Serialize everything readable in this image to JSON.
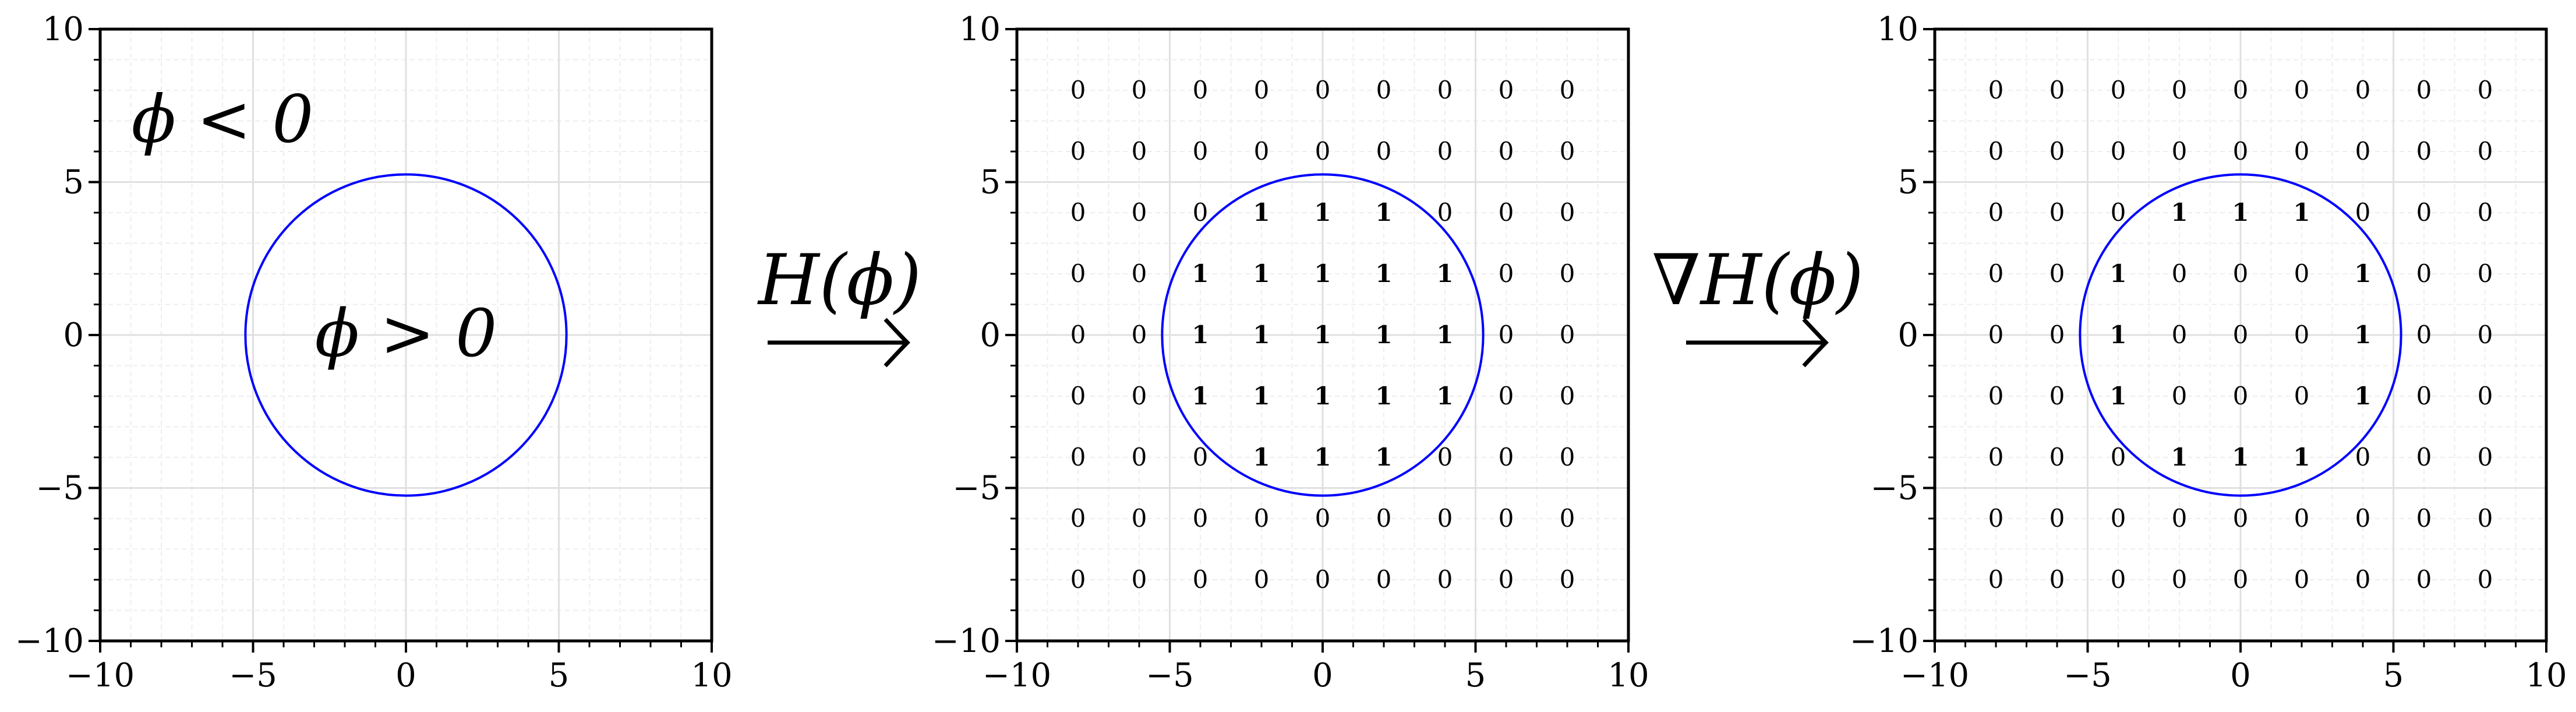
{
  "colors": {
    "circle": "#0000ff",
    "frame": "#000000",
    "grid_major": "#e0e0e0",
    "grid_minor": "#eeeeee",
    "text": "#000000"
  },
  "axis": {
    "xlim": [
      -10,
      10
    ],
    "ylim": [
      -10,
      10
    ],
    "x_tick_labels": [
      "−10",
      "−5",
      "0",
      "5",
      "10"
    ],
    "y_tick_labels": [
      "10",
      "5",
      "0",
      "−5",
      "−10"
    ],
    "grid": true,
    "minor_grid": true
  },
  "circle_radius": 5.25,
  "panels": [
    {
      "id": "phi",
      "text_labels": [
        {
          "text": "ϕ < 0",
          "x": -6,
          "y": 7
        },
        {
          "text": "ϕ > 0",
          "x": 0,
          "y": 0
        }
      ]
    },
    {
      "id": "heaviside",
      "grid_x": [
        -8,
        -6,
        -4,
        -2,
        0,
        2,
        4,
        6,
        8
      ],
      "grid_y": [
        8,
        6,
        4,
        2,
        0,
        -2,
        -4,
        -6,
        -8
      ],
      "values": [
        [
          0,
          0,
          0,
          0,
          0,
          0,
          0,
          0,
          0
        ],
        [
          0,
          0,
          0,
          0,
          0,
          0,
          0,
          0,
          0
        ],
        [
          0,
          0,
          0,
          1,
          1,
          1,
          0,
          0,
          0
        ],
        [
          0,
          0,
          1,
          1,
          1,
          1,
          1,
          0,
          0
        ],
        [
          0,
          0,
          1,
          1,
          1,
          1,
          1,
          0,
          0
        ],
        [
          0,
          0,
          1,
          1,
          1,
          1,
          1,
          0,
          0
        ],
        [
          0,
          0,
          0,
          1,
          1,
          1,
          0,
          0,
          0
        ],
        [
          0,
          0,
          0,
          0,
          0,
          0,
          0,
          0,
          0
        ],
        [
          0,
          0,
          0,
          0,
          0,
          0,
          0,
          0,
          0
        ]
      ]
    },
    {
      "id": "gradient",
      "grid_x": [
        -8,
        -6,
        -4,
        -2,
        0,
        2,
        4,
        6,
        8
      ],
      "grid_y": [
        8,
        6,
        4,
        2,
        0,
        -2,
        -4,
        -6,
        -8
      ],
      "values": [
        [
          0,
          0,
          0,
          0,
          0,
          0,
          0,
          0,
          0
        ],
        [
          0,
          0,
          0,
          0,
          0,
          0,
          0,
          0,
          0
        ],
        [
          0,
          0,
          0,
          1,
          1,
          1,
          0,
          0,
          0
        ],
        [
          0,
          0,
          1,
          0,
          0,
          0,
          1,
          0,
          0
        ],
        [
          0,
          0,
          1,
          0,
          0,
          0,
          1,
          0,
          0
        ],
        [
          0,
          0,
          1,
          0,
          0,
          0,
          1,
          0,
          0
        ],
        [
          0,
          0,
          0,
          1,
          1,
          1,
          0,
          0,
          0
        ],
        [
          0,
          0,
          0,
          0,
          0,
          0,
          0,
          0,
          0
        ],
        [
          0,
          0,
          0,
          0,
          0,
          0,
          0,
          0,
          0
        ]
      ]
    }
  ],
  "arrows": [
    {
      "label": "H(ϕ)"
    },
    {
      "label": "∇H(ϕ)"
    }
  ]
}
